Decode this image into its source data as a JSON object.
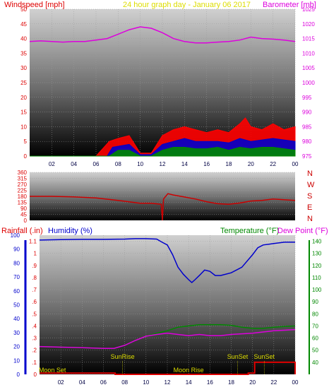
{
  "header": {
    "title": "24 hour graph day - January 06 2017",
    "wind_label": "Windspeed [mph]",
    "baro_label": "Barometer [mb]"
  },
  "middle": {
    "compass_letters": [
      "N",
      "W",
      "S",
      "E",
      "N"
    ]
  },
  "bottom": {
    "rain_label": "Rainfall (.in)",
    "humidity_label": "Humidity (%)",
    "temp_label": "Temperature (°F)",
    "dew_label": "Dew Point (°F)",
    "event_labels": [
      {
        "text": "Moon Set",
        "x": 1.2
      },
      {
        "text": "SunRise",
        "x": 7.8
      },
      {
        "text": "Moon Rise",
        "x": 14.0
      },
      {
        "text": "SunSet",
        "x": 18.6
      },
      {
        "text": "SunSet",
        "x": 21.1
      }
    ]
  },
  "colors": {
    "wind_label": "#dd0000",
    "title": "#dddd00",
    "baro": "#dd00dd",
    "rain": "#dd0000",
    "humidity": "#0000cc",
    "temp": "#008800",
    "dew": "#dd00dd",
    "wind_gust": "#ff0000",
    "wind_avg": "#0000cc",
    "wind_min": "#008800",
    "wind_dir": "#cc0000",
    "event_label": "#dddd00"
  },
  "chart_data": [
    {
      "type": "line",
      "title": "24 hour graph day - January 06 2017",
      "x_ticks": [
        "02",
        "04",
        "06",
        "08",
        "10",
        "12",
        "14",
        "16",
        "18",
        "20",
        "22",
        "00"
      ],
      "y_left_label": "Windspeed [mph]",
      "y_left_ticks": [
        0,
        5,
        10,
        15,
        20,
        25,
        30,
        35,
        40,
        45,
        50
      ],
      "y_left_range": [
        0,
        50
      ],
      "y_right_label": "Barometer [mb]",
      "y_right_ticks": [
        975,
        980,
        985,
        990,
        995,
        1000,
        1005,
        1010,
        1015,
        1020,
        1025
      ],
      "y_right_range": [
        975,
        1025
      ],
      "series": [
        {
          "key": "barometer",
          "axis": "right",
          "x": [
            0,
            1,
            2,
            3,
            4,
            5,
            6,
            7,
            8,
            9,
            10,
            11,
            12,
            13,
            14,
            15,
            16,
            17,
            18,
            19,
            20,
            21,
            22,
            23,
            24
          ],
          "values": [
            1014,
            1014.2,
            1014,
            1013.8,
            1014,
            1014,
            1014.5,
            1015,
            1016.5,
            1018,
            1019,
            1018.5,
            1017,
            1015,
            1014,
            1013.5,
            1013.5,
            1013.8,
            1014,
            1014.5,
            1015.5,
            1015,
            1014.8,
            1014.5,
            1014
          ]
        },
        {
          "key": "gust",
          "axis": "left",
          "x": [
            0,
            6,
            7.2,
            8,
            9,
            10,
            11,
            12,
            13,
            14,
            15,
            16,
            17,
            18,
            19,
            19.5,
            20,
            21,
            22,
            23,
            24
          ],
          "values": [
            0,
            0,
            5,
            6,
            7,
            1,
            1,
            7,
            9,
            10,
            9,
            8,
            9,
            8,
            11,
            13,
            10,
            9,
            11,
            9,
            10
          ]
        },
        {
          "key": "average",
          "axis": "left",
          "x": [
            0,
            7,
            7.5,
            9,
            10,
            11,
            12,
            13,
            14,
            15,
            16,
            17,
            18,
            19,
            20,
            21,
            22,
            23,
            24
          ],
          "values": [
            0,
            0,
            3,
            4,
            0.5,
            0.5,
            4,
            5,
            6,
            5,
            5,
            5,
            4.5,
            6,
            5,
            5.5,
            6,
            5.5,
            5
          ]
        },
        {
          "key": "minimum",
          "axis": "left",
          "x": [
            0,
            7.2,
            8,
            9,
            10,
            11,
            12,
            13,
            14,
            15,
            16,
            17,
            18,
            19,
            20,
            21,
            22,
            23,
            24
          ],
          "values": [
            0,
            0,
            2,
            2,
            0,
            0,
            2,
            3,
            3,
            2.5,
            2.5,
            3,
            2,
            3,
            2.5,
            3,
            3,
            2.5,
            2
          ]
        }
      ]
    },
    {
      "type": "line",
      "y_ticks": [
        0,
        45,
        90,
        135,
        180,
        225,
        270,
        315,
        360
      ],
      "y_range": [
        0,
        360
      ],
      "series": [
        {
          "key": "wind_direction",
          "x": [
            0,
            2,
            4,
            6,
            8,
            10,
            11,
            11.9,
            12,
            12.1,
            12.5,
            13,
            14,
            15,
            16,
            17,
            18,
            19,
            20,
            21,
            22,
            23,
            24
          ],
          "values": [
            180,
            180,
            176,
            168,
            150,
            128,
            128,
            120,
            0,
            160,
            200,
            190,
            175,
            160,
            140,
            125,
            120,
            130,
            145,
            150,
            160,
            155,
            150
          ]
        }
      ]
    },
    {
      "type": "line",
      "x_ticks": [
        "02",
        "04",
        "06",
        "08",
        "10",
        "12",
        "14",
        "16",
        "18",
        "20",
        "22",
        "00"
      ],
      "y_left_label": "Rainfall (.in)",
      "y_left_ticks": [
        0,
        0.1,
        0.2,
        0.3,
        0.4,
        0.5,
        0.6,
        0.7,
        0.8,
        0.9,
        1,
        1.1
      ],
      "y_left_range": [
        0,
        1.15
      ],
      "humidity_ticks": [
        0,
        10,
        20,
        30,
        40,
        50,
        60,
        70,
        80,
        90,
        100
      ],
      "humidity_range": [
        0,
        100
      ],
      "y_right_label": "Temperature (°F)",
      "y_right_ticks": [
        40,
        50,
        60,
        70,
        80,
        90,
        100,
        110,
        120,
        130,
        140
      ],
      "y_right_range": [
        30,
        145
      ],
      "series": [
        {
          "key": "humidity",
          "axis": "humidity",
          "x": [
            0,
            2,
            4,
            6,
            8,
            9,
            10,
            11,
            11.5,
            12,
            12.5,
            13,
            13.5,
            14,
            14.3,
            14.6,
            15,
            15.5,
            16,
            16.5,
            17,
            18,
            19,
            20,
            20.5,
            21,
            22,
            23,
            24
          ],
          "values": [
            96.5,
            96.8,
            97,
            97,
            97.2,
            97.5,
            97.5,
            97.2,
            95,
            93,
            86,
            77,
            72,
            68,
            66,
            68,
            71,
            75,
            74,
            71,
            71,
            73,
            77,
            86,
            91,
            93,
            94,
            95,
            95
          ]
        },
        {
          "key": "temperature",
          "axis": "right",
          "x": [
            0,
            2,
            4,
            6,
            7,
            8,
            9,
            10,
            11,
            12,
            13,
            14,
            15,
            16,
            17,
            18,
            19,
            20,
            21,
            22,
            23,
            24
          ],
          "values": [
            53,
            52.5,
            52,
            51.5,
            51.5,
            54,
            58,
            61.5,
            64,
            66,
            69,
            70,
            71,
            71,
            71,
            70.5,
            69,
            68,
            68,
            69,
            69.5,
            70
          ]
        },
        {
          "key": "dew_point",
          "axis": "right",
          "x": [
            0,
            2,
            4,
            6,
            7,
            8,
            9,
            10,
            11,
            12,
            13,
            14,
            15,
            16,
            17,
            18,
            19,
            20,
            21,
            22,
            23,
            24
          ],
          "values": [
            53,
            52.5,
            52,
            51.5,
            51.5,
            54,
            58,
            61.5,
            63,
            64,
            63,
            62,
            63,
            62,
            62,
            63,
            63.5,
            64,
            65,
            66,
            66.5,
            67
          ]
        },
        {
          "key": "rainfall",
          "axis": "left",
          "x": [
            0,
            7.1,
            7.1,
            19.6,
            19.6,
            20.2,
            20.2,
            24,
            24
          ],
          "values": [
            0.01,
            0.01,
            0,
            0,
            0.01,
            0.01,
            0.1,
            0.1,
            0
          ]
        }
      ]
    }
  ]
}
